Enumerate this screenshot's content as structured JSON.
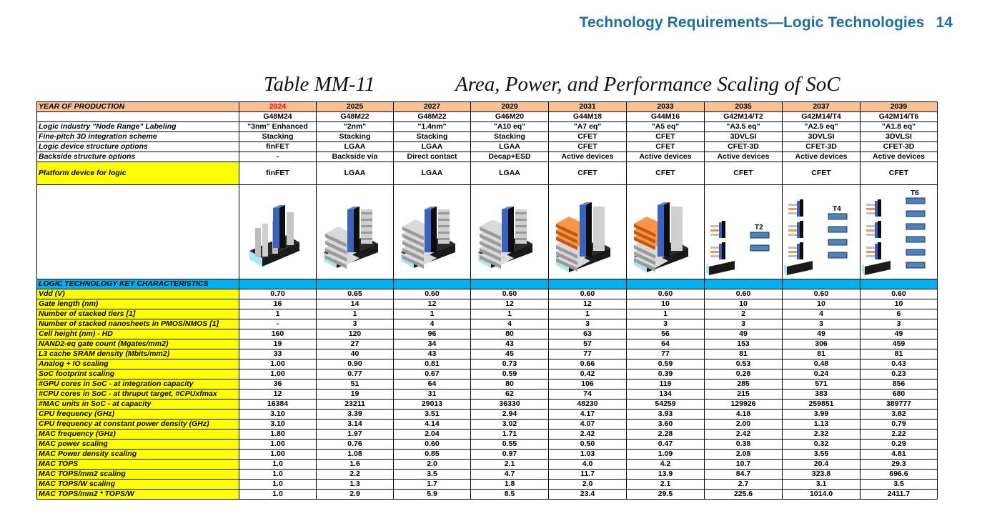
{
  "header": {
    "title": "Technology Requirements—Logic Technologies",
    "page": "14"
  },
  "caption": {
    "table_id": "Table MM-11",
    "title": "Area, Power, and Performance Scaling of SoC"
  },
  "table": {
    "year_label": "YEAR OF PRODUCTION",
    "years": [
      "2024",
      "2025",
      "2027",
      "2029",
      "2031",
      "2033",
      "2035",
      "2037",
      "2039"
    ],
    "nodes": [
      "G48M24",
      "G48M22",
      "G48M22",
      "G46M20",
      "G44M18",
      "G44M16",
      "G42M14/T2",
      "G42M14/T4",
      "G42M14/T6"
    ],
    "meta_rows": [
      {
        "label": "Logic industry \"Node Range\" Labeling",
        "values": [
          "\"3nm\" Enhanced",
          "\"2nm\"",
          "\"1.4nm\"",
          "\"A10 eq\"",
          "\"A7 eq\"",
          "\"A5 eq\"",
          "\"A3.5 eq\"",
          "\"A2.5 eq\"",
          "\"A1.8 eq\""
        ]
      },
      {
        "label": "Fine-pitch 3D integration scheme",
        "values": [
          "Stacking",
          "Stacking",
          "Stacking",
          "Stacking",
          "CFET",
          "CFET",
          "3DVLSI",
          "3DVLSI",
          "3DVLSI"
        ]
      },
      {
        "label": "Logic device structure options",
        "values": [
          "finFET",
          "LGAA",
          "LGAA",
          "LGAA",
          "CFET",
          "CFET",
          "CFET-3D",
          "CFET-3D",
          "CFET-3D"
        ]
      },
      {
        "label": "Backside structure options",
        "values": [
          "-",
          "Backside via",
          "Direct contact",
          "Decap+ESD",
          "Active devices",
          "Active devices",
          "Active devices",
          "Active devices",
          "Active devices"
        ]
      }
    ],
    "platform": {
      "label": "Platform device for logic",
      "values": [
        "finFET",
        "LGAA",
        "LGAA",
        "LGAA",
        "CFET",
        "CFET",
        "CFET",
        "CFET",
        "CFET"
      ]
    },
    "device_images": [
      {
        "icon": "finfet-device-icon"
      },
      {
        "icon": "lgaa-device-icon"
      },
      {
        "icon": "lgaa-device-icon"
      },
      {
        "icon": "lgaa-device-icon"
      },
      {
        "icon": "cfet-device-icon"
      },
      {
        "icon": "cfet-device-icon"
      },
      {
        "icon": "cfet-3d-device-icon",
        "tier_label": "T2"
      },
      {
        "icon": "cfet-3d-device-icon",
        "tier_label": "T4"
      },
      {
        "icon": "cfet-3d-device-icon",
        "tier_label": "T6"
      }
    ],
    "section_label": "LOGIC TECHNOLOGY KEY CHARACTERISTICS",
    "rows": [
      {
        "label": "Vdd (V)",
        "values": [
          "0.70",
          "0.65",
          "0.60",
          "0.60",
          "0.60",
          "0.60",
          "0.60",
          "0.60",
          "0.60"
        ]
      },
      {
        "label": "Gate length (nm)",
        "values": [
          "16",
          "14",
          "12",
          "12",
          "12",
          "10",
          "10",
          "10",
          "10"
        ]
      },
      {
        "label": "Number of stacked tiers [1]",
        "values": [
          "1",
          "1",
          "1",
          "1",
          "1",
          "1",
          "2",
          "4",
          "6"
        ]
      },
      {
        "label": "Number of stacked nanosheets in PMOS/NMOS [1]",
        "values": [
          "-",
          "3",
          "4",
          "4",
          "3",
          "3",
          "3",
          "3",
          "3"
        ]
      },
      {
        "label": "Cell height (nm) - HD",
        "values": [
          "160",
          "120",
          "96",
          "80",
          "63",
          "56",
          "49",
          "49",
          "49"
        ]
      },
      {
        "label": "NAND2-eq gate count (Mgates/mm2)",
        "values": [
          "19",
          "27",
          "34",
          "43",
          "57",
          "64",
          "153",
          "306",
          "459"
        ]
      },
      {
        "label": "L3 cache SRAM density (Mbits/mm2)",
        "values": [
          "33",
          "40",
          "43",
          "45",
          "77",
          "77",
          "81",
          "81",
          "81"
        ]
      },
      {
        "label": "Analog + IO scaling",
        "values": [
          "1.00",
          "0.90",
          "0.81",
          "0.73",
          "0.66",
          "0.59",
          "0.53",
          "0.48",
          "0.43"
        ]
      },
      {
        "label": "SoC footprint scaling",
        "values": [
          "1.00",
          "0.77",
          "0.67",
          "0.59",
          "0.42",
          "0.39",
          "0.28",
          "0.24",
          "0.23"
        ]
      },
      {
        "label": "#GPU cores in SoC - at integration capacity",
        "values": [
          "36",
          "51",
          "64",
          "80",
          "106",
          "119",
          "285",
          "571",
          "856"
        ]
      },
      {
        "label": "#CPU cores in SoC - at thruput target, #CPUxfmax",
        "values": [
          "12",
          "19",
          "31",
          "62",
          "74",
          "134",
          "215",
          "383",
          "680"
        ]
      },
      {
        "label": "#MAC units in SoC - at capacity",
        "values": [
          "16384",
          "23211",
          "29013",
          "36330",
          "48230",
          "54259",
          "129926",
          "259851",
          "389777"
        ]
      },
      {
        "label": "CPU frequency (GHz)",
        "values": [
          "3.10",
          "3.39",
          "3.51",
          "2.94",
          "4.17",
          "3.93",
          "4.18",
          "3.99",
          "3.82"
        ]
      },
      {
        "label": "CPU frequency at constant power density (GHz)",
        "values": [
          "3.10",
          "3.14",
          "4.14",
          "3.02",
          "4.07",
          "3.60",
          "2.00",
          "1.13",
          "0.79"
        ]
      },
      {
        "label": "MAC frequency (GHz)",
        "values": [
          "1.80",
          "1.97",
          "2.04",
          "1.71",
          "2.42",
          "2.28",
          "2.42",
          "2.32",
          "2.22"
        ]
      },
      {
        "label": "MAC power scaling",
        "values": [
          "1.00",
          "0.76",
          "0.60",
          "0.55",
          "0.50",
          "0.47",
          "0.38",
          "0.32",
          "0.29"
        ]
      },
      {
        "label": "MAC Power density scaling",
        "values": [
          "1.00",
          "1.08",
          "0.85",
          "0.97",
          "1.03",
          "1.09",
          "2.08",
          "3.55",
          "4.81"
        ]
      },
      {
        "label": "MAC TOPS",
        "values": [
          "1.0",
          "1.6",
          "2.0",
          "2.1",
          "4.0",
          "4.2",
          "10.7",
          "20.4",
          "29.3"
        ]
      },
      {
        "label": "MAC TOPS/mm2 scaling",
        "values": [
          "1.0",
          "2.2",
          "3.5",
          "4.7",
          "11.7",
          "13.9",
          "84.7",
          "323.8",
          "696.6"
        ]
      },
      {
        "label": "MAC TOPS/W scaling",
        "values": [
          "1.0",
          "1.3",
          "1.7",
          "1.8",
          "2.0",
          "2.1",
          "2.7",
          "3.1",
          "3.5"
        ]
      },
      {
        "label": "MAC TOPS/mm2 * TOPS/W",
        "values": [
          "1.0",
          "2.9",
          "5.9",
          "8.5",
          "23.4",
          "29.5",
          "225.6",
          "1014.0",
          "2411.7"
        ]
      }
    ],
    "colors": {
      "label_bg": "#ffff00",
      "year_bg": "#fac090",
      "section_bg": "#00b0f0",
      "first_year": "#ff0000",
      "header_text": "#1c6ea4"
    }
  }
}
